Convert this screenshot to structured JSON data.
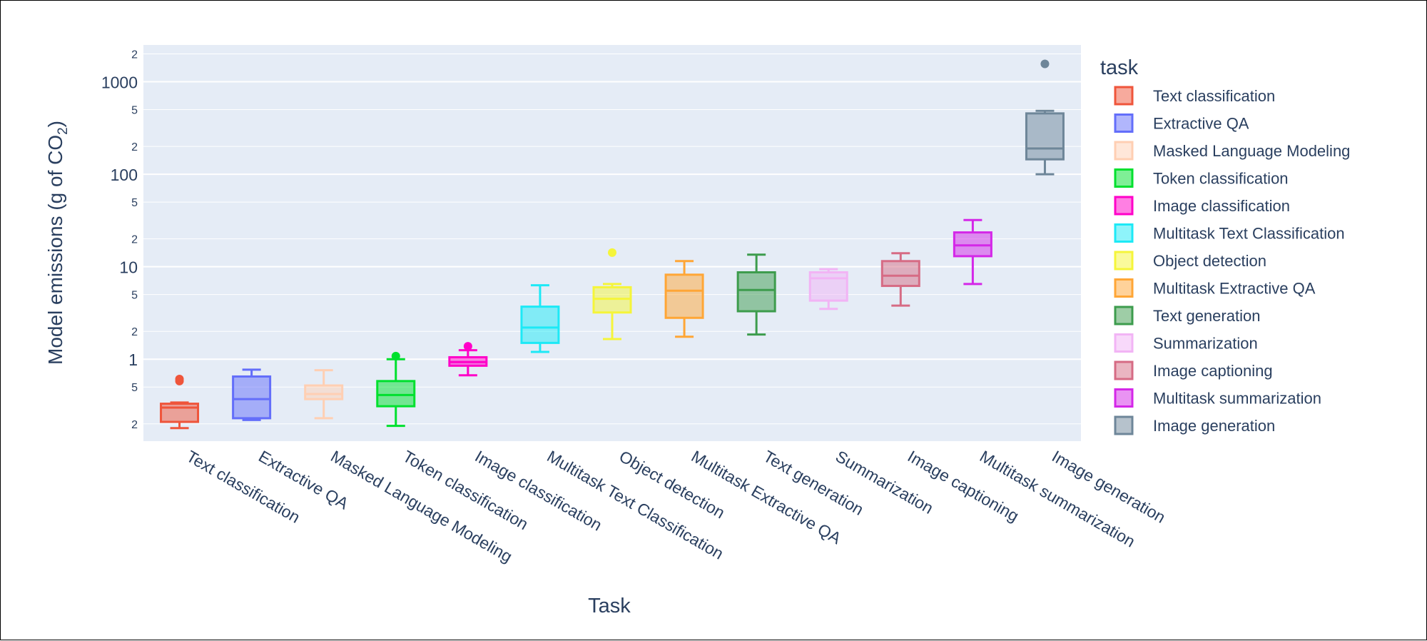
{
  "chart_data": {
    "type": "box",
    "title": "",
    "xlabel": "Task",
    "ylabel": "Model emissions (g of CO",
    "ylabel_sub": "2",
    "ylabel_close": ")",
    "yscale": "log",
    "ylim": [
      0.13,
      2500
    ],
    "grid": true,
    "legend": {
      "title": "task",
      "placement": "right"
    },
    "y_major_ticks": [
      {
        "value": 1,
        "label": "1"
      },
      {
        "value": 10,
        "label": "10"
      },
      {
        "value": 100,
        "label": "100"
      },
      {
        "value": 1000,
        "label": "1000"
      }
    ],
    "y_minor_ticks": [
      {
        "value": 0.2,
        "label": "2"
      },
      {
        "value": 0.5,
        "label": "5"
      },
      {
        "value": 2,
        "label": "2"
      },
      {
        "value": 5,
        "label": "5"
      },
      {
        "value": 20,
        "label": "2"
      },
      {
        "value": 50,
        "label": "5"
      },
      {
        "value": 200,
        "label": "2"
      },
      {
        "value": 500,
        "label": "5"
      },
      {
        "value": 2000,
        "label": "2"
      }
    ],
    "categories": [
      "Text classification",
      "Extractive QA",
      "Masked Language Modeling",
      "Token classification",
      "Image classification",
      "Multitask Text Classification",
      "Object detection",
      "Multitask Extractive QA",
      "Text generation",
      "Summarization",
      "Image captioning",
      "Multitask summarization",
      "Image generation"
    ],
    "series": [
      {
        "name": "Text classification",
        "color": "#ef553b",
        "min": 0.18,
        "q1": 0.21,
        "median": 0.3,
        "q3": 0.33,
        "max": 0.34,
        "outliers": [
          0.58,
          0.61
        ]
      },
      {
        "name": "Extractive QA",
        "color": "#636efa",
        "min": 0.22,
        "q1": 0.23,
        "median": 0.37,
        "q3": 0.65,
        "max": 0.77,
        "outliers": []
      },
      {
        "name": "Masked Language Modeling",
        "color": "#ffcfb3",
        "min": 0.23,
        "q1": 0.37,
        "median": 0.42,
        "q3": 0.52,
        "max": 0.76,
        "outliers": []
      },
      {
        "name": "Token classification",
        "color": "#00e02e",
        "min": 0.19,
        "q1": 0.31,
        "median": 0.41,
        "q3": 0.58,
        "max": 1.0,
        "outliers": [
          1.08
        ]
      },
      {
        "name": "Image classification",
        "color": "#ff00c8",
        "min": 0.67,
        "q1": 0.85,
        "median": 0.93,
        "q3": 1.05,
        "max": 1.25,
        "outliers": [
          1.38
        ]
      },
      {
        "name": "Multitask Text Classification",
        "color": "#1de9f6",
        "min": 1.2,
        "q1": 1.5,
        "median": 2.2,
        "q3": 3.7,
        "max": 6.3,
        "outliers": []
      },
      {
        "name": "Object detection",
        "color": "#f5f53a",
        "min": 1.65,
        "q1": 3.2,
        "median": 4.5,
        "q3": 6.0,
        "max": 6.5,
        "outliers": [
          14.2
        ]
      },
      {
        "name": "Multitask Extractive QA",
        "color": "#ffa636",
        "min": 1.75,
        "q1": 2.8,
        "median": 5.5,
        "q3": 8.2,
        "max": 11.5,
        "outliers": []
      },
      {
        "name": "Text generation",
        "color": "#3d9c4d",
        "min": 1.85,
        "q1": 3.3,
        "median": 5.6,
        "q3": 8.7,
        "max": 13.5,
        "outliers": []
      },
      {
        "name": "Summarization",
        "color": "#f2b4f5",
        "min": 3.5,
        "q1": 4.3,
        "median": 7.5,
        "q3": 8.7,
        "max": 9.4,
        "outliers": []
      },
      {
        "name": "Image captioning",
        "color": "#d66b84",
        "min": 3.8,
        "q1": 6.2,
        "median": 8.0,
        "q3": 11.5,
        "max": 14.0,
        "outliers": []
      },
      {
        "name": "Multitask summarization",
        "color": "#d427e8",
        "min": 6.5,
        "q1": 13.0,
        "median": 17.0,
        "q3": 23.5,
        "max": 32.0,
        "outliers": []
      },
      {
        "name": "Image generation",
        "color": "#6e8699",
        "min": 100,
        "q1": 145,
        "median": 190,
        "q3": 455,
        "max": 485,
        "outliers": [
          1560
        ]
      }
    ]
  }
}
